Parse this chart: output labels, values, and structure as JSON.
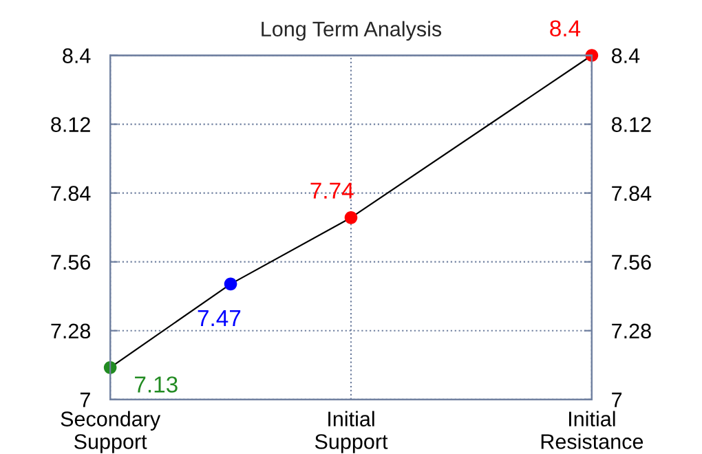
{
  "chart_data": {
    "type": "line",
    "title": "Long Term Analysis",
    "categories": [
      "Secondary\nSupport",
      null,
      "Initial\nSupport",
      null,
      "Initial\nResistance"
    ],
    "series": [
      {
        "color": "#000000",
        "colors": [
          "#228b22",
          "#0000ff",
          "#ff0000",
          null,
          "#ff0000"
        ],
        "values": [
          7.13,
          7.47,
          7.74,
          null,
          8.4
        ]
      }
    ],
    "data_labels": true,
    "marker": "circle",
    "line_style": "solid",
    "ylim": [
      7,
      8.4
    ],
    "yticks": [
      7,
      7.28,
      7.56,
      7.84,
      8.12,
      8.4
    ],
    "y2lim": [
      7,
      8.4
    ],
    "y2ticks": [
      7,
      7.28,
      7.56,
      7.84,
      8.12,
      8.4
    ],
    "grid": true
  }
}
